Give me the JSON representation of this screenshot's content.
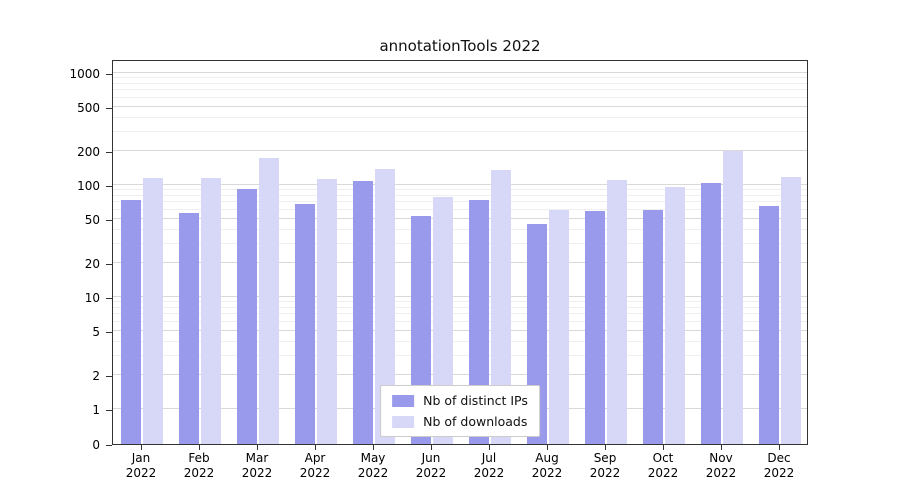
{
  "page": {
    "background": "#ffffff",
    "axis_color": "#333333",
    "grid_major_color": "#d9d9d9",
    "grid_minor_color": "#efefef"
  },
  "chart_data": {
    "type": "bar",
    "title": "annotationTools 2022",
    "categories": [
      "Jan",
      "Feb",
      "Mar",
      "Apr",
      "May",
      "Jun",
      "Jul",
      "Aug",
      "Sep",
      "Oct",
      "Nov",
      "Dec"
    ],
    "category_year": "2022",
    "series": [
      {
        "name": "Nb of distinct IPs",
        "color": "#9a9aec",
        "values": [
          74,
          56,
          92,
          67,
          108,
          53,
          73,
          45,
          58,
          60,
          105,
          65
        ]
      },
      {
        "name": "Nb of downloads",
        "color": "#d7d7f8",
        "values": [
          115,
          115,
          175,
          112,
          140,
          78,
          135,
          60,
          110,
          95,
          200,
          118
        ]
      }
    ],
    "yscale": "symlog",
    "yticks": [
      0,
      1,
      2,
      5,
      10,
      20,
      50,
      100,
      200,
      500,
      1000
    ],
    "ylim": [
      0,
      1300
    ],
    "grid": true,
    "legend_position": "lower center"
  }
}
